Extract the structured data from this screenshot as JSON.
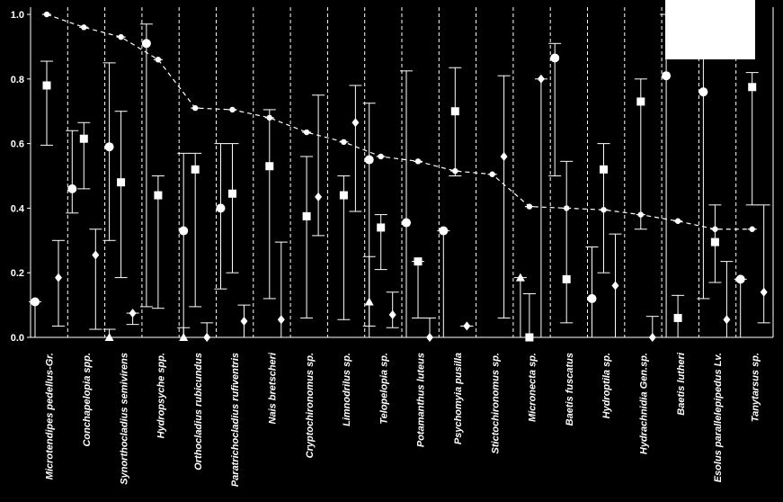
{
  "colors": {
    "background": "#000000",
    "foreground": "#ffffff",
    "overlay_box": "#ffffff"
  },
  "chart_data": {
    "type": "scatter",
    "title": "",
    "xlabel": "",
    "ylabel": "",
    "ylim": [
      0,
      1.0
    ],
    "yticks": [
      "0.0",
      "0.2",
      "0.4",
      "0.6",
      "0.8",
      "1.0"
    ],
    "grid": false,
    "legend": "none",
    "categories": [
      "Microtendipes pedellus-Gr.",
      "Conchapelopia spp.",
      "Synorthocladius semivirens",
      "Hydropsyche spp.",
      "Orthocladius rubicundus",
      "Paratrichocladius rufiventris",
      "Nais bretscheri",
      "Cryptochironomus sp.",
      "Limnodrilus sp.",
      "Telopelopia sp.",
      "Potamanthus luteus",
      "Psychomyia pusilla",
      "Stictochironomus sp.",
      "Micronecta sp.",
      "Baetis fuscatus",
      "Hydroptila sp.",
      "Hydrachnidia Gen.sp.",
      "Baetis lutheri",
      "Esolus parallelepipedus Lv.",
      "Tanytarsus sp."
    ],
    "series": [
      {
        "marker": "star",
        "values": [
          1.0,
          0.96,
          0.93,
          0.86,
          0.71,
          0.705,
          0.68,
          0.635,
          0.605,
          0.56,
          0.545,
          0.515,
          0.505,
          0.405,
          0.4,
          0.395,
          0.38,
          0.36,
          0.335,
          0.335
        ]
      },
      {
        "marker": "circle",
        "values": [
          0.11,
          0.46,
          0.59,
          0.91,
          0.33,
          0.4,
          null,
          null,
          null,
          0.55,
          0.355,
          0.33,
          null,
          null,
          0.865,
          0.12,
          null,
          0.81,
          0.76,
          0.18
        ],
        "low": [
          0.0,
          0.385,
          0.3,
          0.095,
          0.0,
          0.15,
          null,
          null,
          null,
          0.035,
          0.0,
          0.0,
          null,
          null,
          0.5,
          0.0,
          null,
          0.0,
          0.12,
          0.0
        ],
        "high": [
          0.11,
          0.64,
          0.85,
          0.97,
          0.57,
          0.6,
          null,
          null,
          null,
          0.725,
          0.825,
          0.33,
          null,
          null,
          0.91,
          0.28,
          null,
          1.0,
          1.0,
          0.18
        ]
      },
      {
        "marker": "square",
        "values": [
          0.78,
          0.615,
          0.48,
          0.44,
          0.52,
          0.445,
          0.53,
          0.375,
          0.44,
          0.34,
          0.235,
          0.7,
          null,
          0.0,
          0.18,
          0.52,
          0.73,
          0.06,
          0.295,
          0.775
        ],
        "low": [
          0.595,
          0.46,
          0.185,
          0.09,
          0.095,
          0.2,
          0.12,
          0.06,
          0.055,
          0.21,
          0.06,
          0.5,
          null,
          0.0,
          0.045,
          0.2,
          0.335,
          0.0,
          0.17,
          0.41
        ],
        "high": [
          0.855,
          0.665,
          0.7,
          0.5,
          0.57,
          0.6,
          0.705,
          0.56,
          0.5,
          0.38,
          0.235,
          0.835,
          null,
          0.135,
          0.545,
          0.6,
          0.8,
          0.13,
          0.41,
          0.82
        ]
      },
      {
        "marker": "diamond",
        "values": [
          0.185,
          0.255,
          0.075,
          null,
          0.0,
          0.05,
          0.055,
          0.435,
          0.665,
          0.07,
          0.0,
          0.035,
          0.56,
          0.8,
          null,
          0.16,
          0.0,
          null,
          0.055,
          0.14
        ],
        "low": [
          0.035,
          0.025,
          0.04,
          null,
          0.0,
          0.0,
          0.0,
          0.315,
          0.39,
          0.03,
          0.0,
          0.035,
          0.06,
          0.0,
          null,
          0.0,
          0.0,
          null,
          0.0,
          0.045
        ],
        "high": [
          0.3,
          0.335,
          0.075,
          null,
          0.045,
          0.1,
          0.295,
          0.75,
          0.78,
          0.14,
          0.06,
          0.035,
          0.81,
          0.8,
          null,
          0.32,
          0.065,
          null,
          0.235,
          0.41
        ]
      },
      {
        "marker": "triangle",
        "values": [
          null,
          null,
          0.0,
          null,
          0.0,
          null,
          null,
          null,
          null,
          0.11,
          null,
          null,
          null,
          0.185,
          null,
          null,
          null,
          null,
          null,
          null
        ],
        "low": [
          null,
          null,
          0.0,
          null,
          0.0,
          null,
          null,
          null,
          null,
          0.0,
          null,
          null,
          null,
          0.0,
          null,
          null,
          null,
          null,
          null,
          null
        ],
        "high": [
          null,
          null,
          0.025,
          null,
          0.03,
          null,
          null,
          null,
          null,
          0.25,
          null,
          null,
          null,
          0.185,
          null,
          null,
          null,
          null,
          null,
          null
        ]
      }
    ]
  }
}
